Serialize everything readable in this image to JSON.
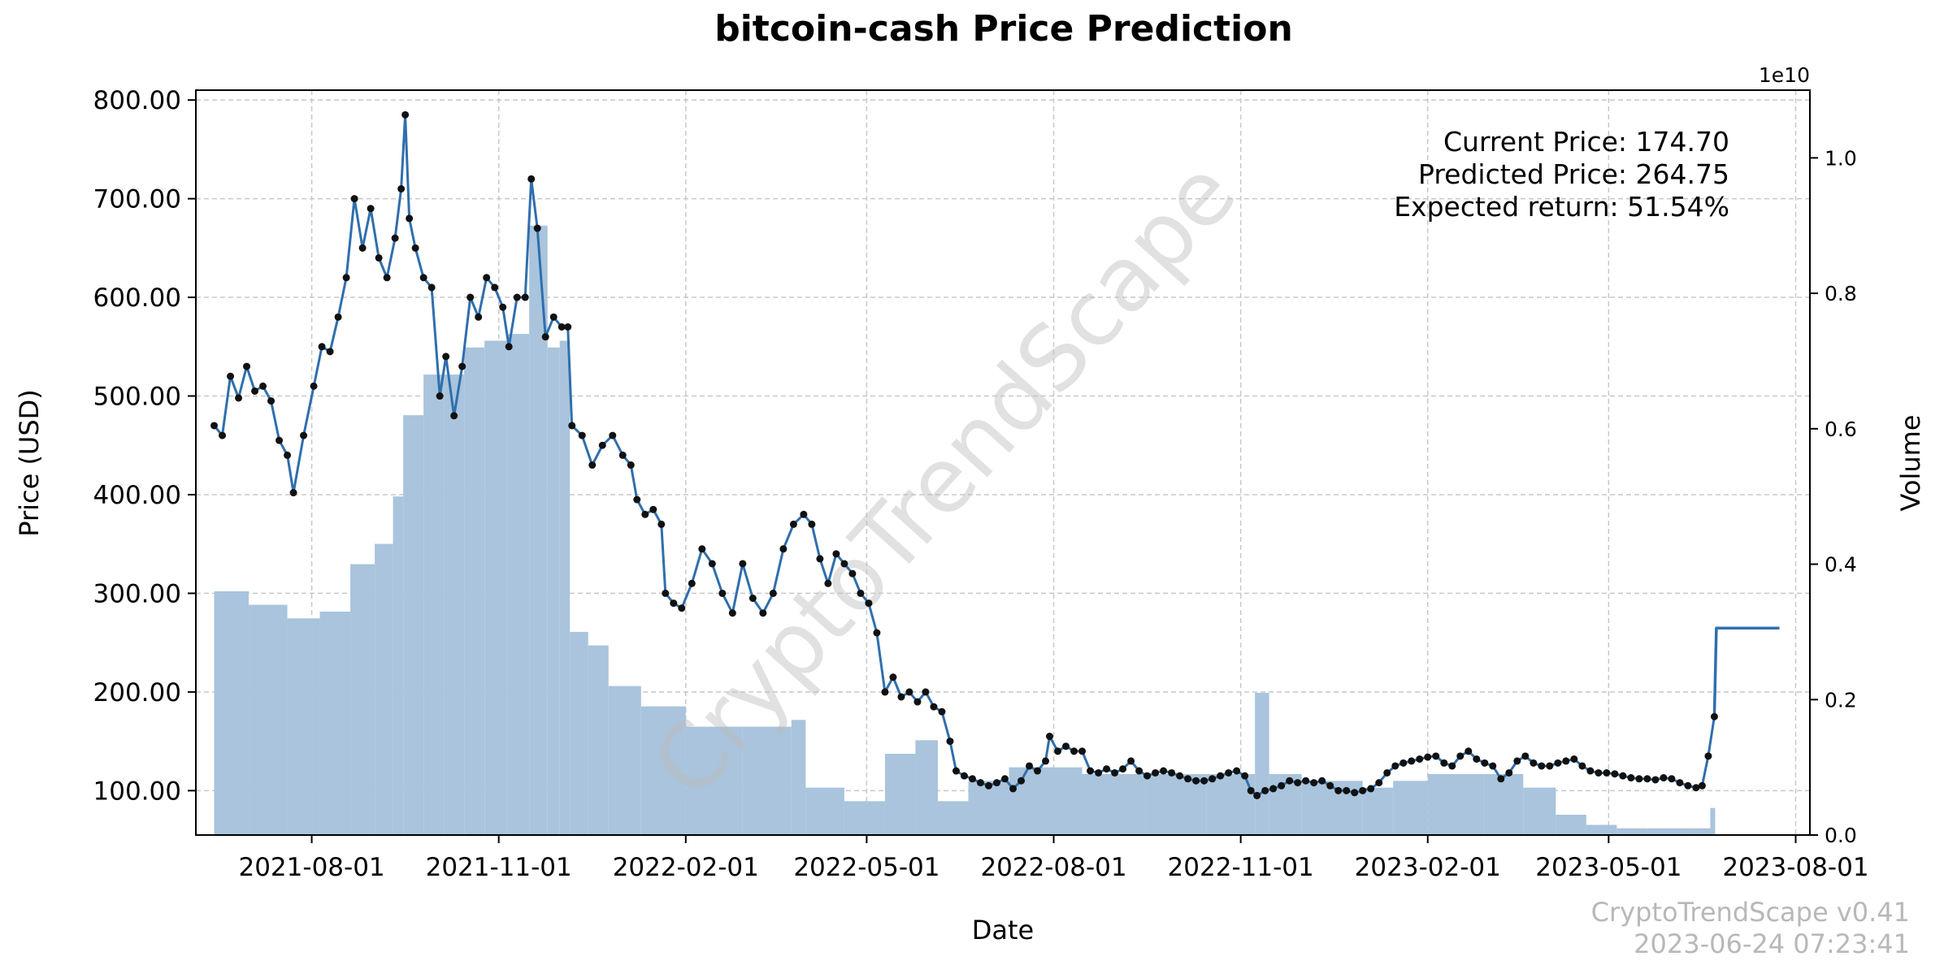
{
  "chart_data": {
    "type": "line",
    "title": "bitcoin-cash Price Prediction",
    "xlabel": "Date",
    "ylabel": "Price (USD)",
    "y2label": "Volume",
    "y2_exponent_label": "1e10",
    "ylim": [
      55,
      810
    ],
    "y2lim": [
      0,
      1.1
    ],
    "xlim": [
      "2021-06-05",
      "2023-08-08"
    ],
    "grid": true,
    "x_ticks": [
      "2021-08-01",
      "2021-11-01",
      "2022-02-01",
      "2022-05-01",
      "2022-08-01",
      "2022-11-01",
      "2023-02-01",
      "2023-05-01",
      "2023-08-01"
    ],
    "y_ticks": [
      "100.00",
      "200.00",
      "300.00",
      "400.00",
      "500.00",
      "600.00",
      "700.00",
      "800.00"
    ],
    "y2_ticks": [
      "0.0",
      "0.2",
      "0.4",
      "0.6",
      "0.8",
      "1.0"
    ],
    "series": [
      {
        "name": "Price",
        "color": "#2f6fad",
        "marker_color": "#111111",
        "points": [
          [
            "2021-06-14",
            470
          ],
          [
            "2021-06-18",
            460
          ],
          [
            "2021-06-22",
            520
          ],
          [
            "2021-06-26",
            498
          ],
          [
            "2021-06-30",
            530
          ],
          [
            "2021-07-04",
            505
          ],
          [
            "2021-07-08",
            510
          ],
          [
            "2021-07-12",
            495
          ],
          [
            "2021-07-16",
            455
          ],
          [
            "2021-07-20",
            440
          ],
          [
            "2021-07-23",
            402
          ],
          [
            "2021-07-28",
            460
          ],
          [
            "2021-08-02",
            510
          ],
          [
            "2021-08-06",
            550
          ],
          [
            "2021-08-10",
            545
          ],
          [
            "2021-08-14",
            580
          ],
          [
            "2021-08-18",
            620
          ],
          [
            "2021-08-22",
            700
          ],
          [
            "2021-08-26",
            650
          ],
          [
            "2021-08-30",
            690
          ],
          [
            "2021-09-03",
            640
          ],
          [
            "2021-09-07",
            620
          ],
          [
            "2021-09-11",
            660
          ],
          [
            "2021-09-14",
            710
          ],
          [
            "2021-09-16",
            785
          ],
          [
            "2021-09-18",
            680
          ],
          [
            "2021-09-21",
            650
          ],
          [
            "2021-09-25",
            620
          ],
          [
            "2021-09-29",
            610
          ],
          [
            "2021-10-03",
            500
          ],
          [
            "2021-10-06",
            540
          ],
          [
            "2021-10-10",
            480
          ],
          [
            "2021-10-14",
            530
          ],
          [
            "2021-10-18",
            600
          ],
          [
            "2021-10-22",
            580
          ],
          [
            "2021-10-26",
            620
          ],
          [
            "2021-10-30",
            610
          ],
          [
            "2021-11-03",
            590
          ],
          [
            "2021-11-06",
            550
          ],
          [
            "2021-11-10",
            600
          ],
          [
            "2021-11-14",
            600
          ],
          [
            "2021-11-17",
            720
          ],
          [
            "2021-11-20",
            670
          ],
          [
            "2021-11-24",
            560
          ],
          [
            "2021-11-28",
            580
          ],
          [
            "2021-12-02",
            570
          ],
          [
            "2021-12-05",
            570
          ],
          [
            "2021-12-07",
            470
          ],
          [
            "2021-12-12",
            460
          ],
          [
            "2021-12-17",
            430
          ],
          [
            "2021-12-22",
            450
          ],
          [
            "2021-12-27",
            460
          ],
          [
            "2022-01-01",
            440
          ],
          [
            "2022-01-05",
            430
          ],
          [
            "2022-01-08",
            395
          ],
          [
            "2022-01-12",
            380
          ],
          [
            "2022-01-16",
            385
          ],
          [
            "2022-01-20",
            370
          ],
          [
            "2022-01-22",
            300
          ],
          [
            "2022-01-26",
            290
          ],
          [
            "2022-01-30",
            285
          ],
          [
            "2022-02-04",
            310
          ],
          [
            "2022-02-09",
            345
          ],
          [
            "2022-02-14",
            330
          ],
          [
            "2022-02-19",
            300
          ],
          [
            "2022-02-24",
            280
          ],
          [
            "2022-03-01",
            330
          ],
          [
            "2022-03-06",
            295
          ],
          [
            "2022-03-11",
            280
          ],
          [
            "2022-03-16",
            300
          ],
          [
            "2022-03-21",
            345
          ],
          [
            "2022-03-26",
            370
          ],
          [
            "2022-03-31",
            380
          ],
          [
            "2022-04-04",
            370
          ],
          [
            "2022-04-08",
            335
          ],
          [
            "2022-04-12",
            310
          ],
          [
            "2022-04-16",
            340
          ],
          [
            "2022-04-20",
            330
          ],
          [
            "2022-04-24",
            320
          ],
          [
            "2022-04-28",
            300
          ],
          [
            "2022-05-02",
            290
          ],
          [
            "2022-05-06",
            260
          ],
          [
            "2022-05-10",
            200
          ],
          [
            "2022-05-14",
            215
          ],
          [
            "2022-05-18",
            195
          ],
          [
            "2022-05-22",
            200
          ],
          [
            "2022-05-26",
            190
          ],
          [
            "2022-05-30",
            200
          ],
          [
            "2022-06-03",
            185
          ],
          [
            "2022-06-07",
            180
          ],
          [
            "2022-06-11",
            150
          ],
          [
            "2022-06-14",
            120
          ],
          [
            "2022-06-18",
            115
          ],
          [
            "2022-06-22",
            112
          ],
          [
            "2022-06-26",
            108
          ],
          [
            "2022-06-30",
            105
          ],
          [
            "2022-07-04",
            108
          ],
          [
            "2022-07-08",
            112
          ],
          [
            "2022-07-12",
            102
          ],
          [
            "2022-07-16",
            110
          ],
          [
            "2022-07-20",
            125
          ],
          [
            "2022-07-24",
            120
          ],
          [
            "2022-07-28",
            130
          ],
          [
            "2022-07-30",
            155
          ],
          [
            "2022-08-03",
            140
          ],
          [
            "2022-08-07",
            145
          ],
          [
            "2022-08-11",
            140
          ],
          [
            "2022-08-15",
            140
          ],
          [
            "2022-08-19",
            120
          ],
          [
            "2022-08-23",
            118
          ],
          [
            "2022-08-27",
            122
          ],
          [
            "2022-08-31",
            118
          ],
          [
            "2022-09-04",
            122
          ],
          [
            "2022-09-08",
            130
          ],
          [
            "2022-09-12",
            120
          ],
          [
            "2022-09-16",
            115
          ],
          [
            "2022-09-20",
            118
          ],
          [
            "2022-09-24",
            120
          ],
          [
            "2022-09-28",
            118
          ],
          [
            "2022-10-02",
            115
          ],
          [
            "2022-10-06",
            112
          ],
          [
            "2022-10-10",
            110
          ],
          [
            "2022-10-14",
            110
          ],
          [
            "2022-10-18",
            112
          ],
          [
            "2022-10-22",
            115
          ],
          [
            "2022-10-26",
            118
          ],
          [
            "2022-10-30",
            120
          ],
          [
            "2022-11-03",
            115
          ],
          [
            "2022-11-06",
            100
          ],
          [
            "2022-11-09",
            95
          ],
          [
            "2022-11-13",
            100
          ],
          [
            "2022-11-17",
            102
          ],
          [
            "2022-11-21",
            105
          ],
          [
            "2022-11-25",
            110
          ],
          [
            "2022-11-29",
            108
          ],
          [
            "2022-12-03",
            110
          ],
          [
            "2022-12-07",
            108
          ],
          [
            "2022-12-11",
            110
          ],
          [
            "2022-12-15",
            105
          ],
          [
            "2022-12-19",
            100
          ],
          [
            "2022-12-23",
            100
          ],
          [
            "2022-12-27",
            98
          ],
          [
            "2022-12-31",
            100
          ],
          [
            "2023-01-04",
            102
          ],
          [
            "2023-01-08",
            108
          ],
          [
            "2023-01-12",
            118
          ],
          [
            "2023-01-16",
            125
          ],
          [
            "2023-01-20",
            128
          ],
          [
            "2023-01-24",
            130
          ],
          [
            "2023-01-28",
            132
          ],
          [
            "2023-02-01",
            134
          ],
          [
            "2023-02-05",
            135
          ],
          [
            "2023-02-09",
            128
          ],
          [
            "2023-02-13",
            125
          ],
          [
            "2023-02-17",
            135
          ],
          [
            "2023-02-21",
            140
          ],
          [
            "2023-02-25",
            132
          ],
          [
            "2023-03-01",
            128
          ],
          [
            "2023-03-05",
            125
          ],
          [
            "2023-03-09",
            112
          ],
          [
            "2023-03-13",
            118
          ],
          [
            "2023-03-17",
            130
          ],
          [
            "2023-03-21",
            135
          ],
          [
            "2023-03-25",
            128
          ],
          [
            "2023-03-29",
            125
          ],
          [
            "2023-04-02",
            125
          ],
          [
            "2023-04-06",
            128
          ],
          [
            "2023-04-10",
            130
          ],
          [
            "2023-04-14",
            132
          ],
          [
            "2023-04-18",
            125
          ],
          [
            "2023-04-22",
            120
          ],
          [
            "2023-04-26",
            118
          ],
          [
            "2023-04-30",
            118
          ],
          [
            "2023-05-04",
            117
          ],
          [
            "2023-05-08",
            115
          ],
          [
            "2023-05-12",
            113
          ],
          [
            "2023-05-16",
            112
          ],
          [
            "2023-05-20",
            112
          ],
          [
            "2023-05-24",
            111
          ],
          [
            "2023-05-28",
            113
          ],
          [
            "2023-06-01",
            112
          ],
          [
            "2023-06-05",
            108
          ],
          [
            "2023-06-09",
            105
          ],
          [
            "2023-06-13",
            103
          ],
          [
            "2023-06-16",
            105
          ],
          [
            "2023-06-19",
            135
          ],
          [
            "2023-06-22",
            175
          ]
        ]
      },
      {
        "name": "Prediction",
        "color": "#2f6fad",
        "points": [
          [
            "2023-06-22",
            175
          ],
          [
            "2023-06-23",
            264.75
          ],
          [
            "2023-07-24",
            264.75
          ]
        ]
      },
      {
        "name": "Volume",
        "axis": "right",
        "color": "#a9c4dc",
        "points": [
          [
            "2021-06-14",
            0.36
          ],
          [
            "2021-07-01",
            0.34
          ],
          [
            "2021-07-20",
            0.32
          ],
          [
            "2021-08-05",
            0.33
          ],
          [
            "2021-08-20",
            0.4
          ],
          [
            "2021-09-01",
            0.43
          ],
          [
            "2021-09-10",
            0.5
          ],
          [
            "2021-09-15",
            0.62
          ],
          [
            "2021-09-25",
            0.68
          ],
          [
            "2021-10-05",
            0.68
          ],
          [
            "2021-10-15",
            0.72
          ],
          [
            "2021-10-25",
            0.73
          ],
          [
            "2021-11-05",
            0.74
          ],
          [
            "2021-11-16",
            0.9
          ],
          [
            "2021-11-25",
            0.72
          ],
          [
            "2021-12-01",
            0.73
          ],
          [
            "2021-12-06",
            0.3
          ],
          [
            "2021-12-15",
            0.28
          ],
          [
            "2021-12-25",
            0.22
          ],
          [
            "2022-01-10",
            0.19
          ],
          [
            "2022-02-01",
            0.16
          ],
          [
            "2022-03-01",
            0.16
          ],
          [
            "2022-03-25",
            0.17
          ],
          [
            "2022-04-01",
            0.07
          ],
          [
            "2022-04-20",
            0.05
          ],
          [
            "2022-05-01",
            0.05
          ],
          [
            "2022-05-10",
            0.12
          ],
          [
            "2022-05-25",
            0.14
          ],
          [
            "2022-06-05",
            0.05
          ],
          [
            "2022-06-20",
            0.08
          ],
          [
            "2022-07-10",
            0.1
          ],
          [
            "2022-07-30",
            0.1
          ],
          [
            "2022-08-15",
            0.09
          ],
          [
            "2022-09-15",
            0.09
          ],
          [
            "2022-10-15",
            0.09
          ],
          [
            "2022-11-08",
            0.21
          ],
          [
            "2022-11-15",
            0.09
          ],
          [
            "2022-12-01",
            0.08
          ],
          [
            "2022-12-31",
            0.07
          ],
          [
            "2023-01-15",
            0.08
          ],
          [
            "2023-02-01",
            0.09
          ],
          [
            "2023-03-01",
            0.09
          ],
          [
            "2023-03-20",
            0.07
          ],
          [
            "2023-04-05",
            0.03
          ],
          [
            "2023-04-20",
            0.015
          ],
          [
            "2023-05-05",
            0.01
          ],
          [
            "2023-05-20",
            0.01
          ],
          [
            "2023-06-10",
            0.01
          ],
          [
            "2023-06-20",
            0.04
          ]
        ]
      }
    ],
    "annotations": [
      "Current Price: 174.70",
      "Predicted Price: 264.75",
      "Expected return: 51.54%"
    ],
    "watermark": "CryptoTrendScape",
    "footer": [
      "CryptoTrendScape v0.41",
      "2023-06-24 07:23:41"
    ]
  }
}
